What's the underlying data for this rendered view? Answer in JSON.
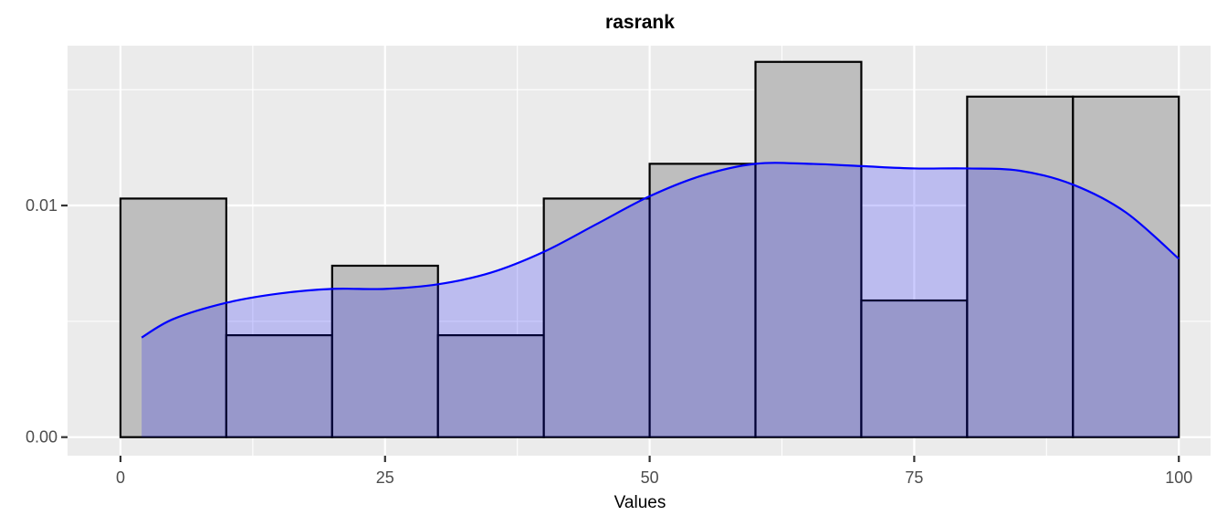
{
  "chart_data": {
    "type": "bar",
    "title": "rasrank",
    "xlabel": "Values",
    "ylabel": "",
    "xlim": [
      -5,
      103
    ],
    "ylim": [
      -0.0008,
      0.0169
    ],
    "x_ticks": [
      0,
      25,
      50,
      75,
      100
    ],
    "x_tick_labels": [
      "0",
      "25",
      "50",
      "75",
      "100"
    ],
    "y_ticks": [
      0.0,
      0.01
    ],
    "y_tick_labels": [
      "0.00",
      "0.01"
    ],
    "grid": true,
    "histogram": {
      "bin_edges": [
        0,
        10,
        20,
        30,
        40,
        50,
        60,
        70,
        80,
        90,
        100
      ],
      "values": [
        0.0103,
        0.0044,
        0.0074,
        0.0044,
        0.0103,
        0.0118,
        0.0162,
        0.0059,
        0.0147,
        0.0147
      ],
      "fill_color": "#bebebe",
      "outline_color": "#000000"
    },
    "density": {
      "name": "",
      "x": [
        2,
        5,
        10,
        15,
        20,
        25,
        30,
        35,
        40,
        45,
        50,
        55,
        60,
        65,
        70,
        75,
        80,
        85,
        90,
        95,
        100
      ],
      "y": [
        0.0043,
        0.0051,
        0.0058,
        0.0062,
        0.0064,
        0.0064,
        0.0066,
        0.0071,
        0.008,
        0.0092,
        0.0104,
        0.0113,
        0.0118,
        0.0118,
        0.0117,
        0.0116,
        0.0116,
        0.0115,
        0.0109,
        0.0097,
        0.0077
      ],
      "line_color": "#0000ff",
      "fill_color": "#0000ff",
      "fill_opacity": 0.2
    }
  }
}
